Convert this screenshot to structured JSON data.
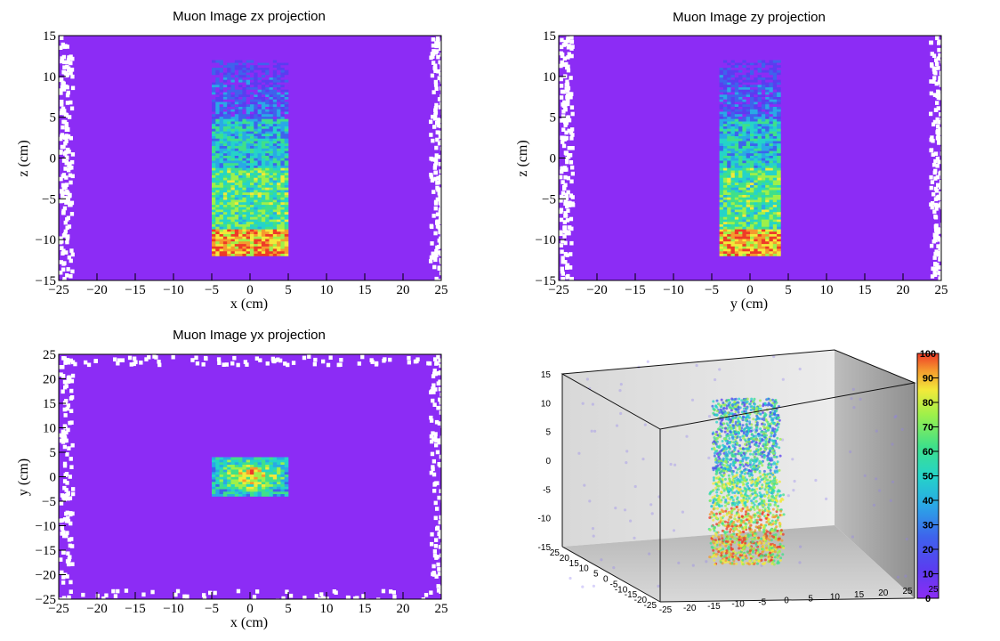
{
  "chart_data": [
    {
      "type": "heatmap",
      "title": "Muon Image zx projection",
      "xlabel": "x (cm)",
      "ylabel": "z (cm)",
      "xlim": [
        -25,
        25
      ],
      "ylim": [
        -15,
        15
      ],
      "x_ticks": [
        -25,
        -20,
        -15,
        -10,
        -5,
        0,
        5,
        10,
        15,
        20,
        25
      ],
      "y_ticks": [
        -15,
        -10,
        -5,
        0,
        5,
        10,
        15
      ],
      "object_region": {
        "x": [
          -5,
          5
        ],
        "y": [
          -12,
          12
        ]
      }
    },
    {
      "type": "heatmap",
      "title": "Muon Image zy projection",
      "xlabel": "y (cm)",
      "ylabel": "z (cm)",
      "xlim": [
        -25,
        25
      ],
      "ylim": [
        -15,
        15
      ],
      "x_ticks": [
        -25,
        -20,
        -15,
        -10,
        -5,
        0,
        5,
        10,
        15,
        20,
        25
      ],
      "y_ticks": [
        -15,
        -10,
        -5,
        0,
        5,
        10,
        15
      ],
      "object_region": {
        "x": [
          -4,
          4
        ],
        "y": [
          -12,
          12
        ]
      }
    },
    {
      "type": "heatmap",
      "title": "Muon Image yx projection",
      "xlabel": "x (cm)",
      "ylabel": "y (cm)",
      "xlim": [
        -25,
        25
      ],
      "ylim": [
        -25,
        25
      ],
      "x_ticks": [
        -25,
        -20,
        -15,
        -10,
        -5,
        0,
        5,
        10,
        15,
        20,
        25
      ],
      "y_ticks": [
        -25,
        -20,
        -15,
        -10,
        -5,
        0,
        5,
        10,
        15,
        20,
        25
      ],
      "object_region": {
        "x": [
          -5,
          5
        ],
        "y": [
          -4,
          4
        ]
      }
    },
    {
      "type": "scatter",
      "subtype": "3d",
      "z_ticks": [
        -15,
        -10,
        -5,
        0,
        5,
        10,
        15
      ],
      "y_ticks": [
        25,
        20,
        15,
        10,
        5,
        0,
        -5,
        -10,
        -15,
        -20,
        -25
      ],
      "x_ticks": [
        -25,
        -20,
        -15,
        -10,
        -5,
        0,
        5,
        10,
        15,
        20,
        25
      ],
      "colorbar": {
        "min": 0,
        "max": 100,
        "ticks": [
          0,
          10,
          20,
          30,
          40,
          50,
          60,
          70,
          80,
          90,
          100
        ],
        "extra_label": "25"
      }
    }
  ],
  "colors": {
    "background_bin": "#8c2cf5",
    "palette": [
      "#8c2cf5",
      "#5a3df0",
      "#3e63ec",
      "#2aa8e6",
      "#25d4c8",
      "#3fe08a",
      "#9ef04a",
      "#f2e93a",
      "#f59a2e",
      "#ee3a28"
    ]
  }
}
